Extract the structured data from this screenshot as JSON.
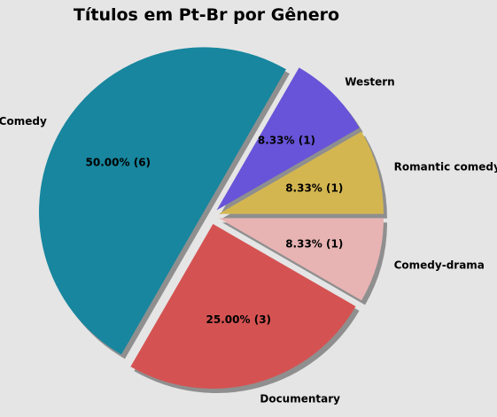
{
  "chart_data": {
    "type": "pie",
    "title": "Títulos em Pt-Br por Gênero",
    "slices": [
      {
        "label": "Romantic comedy",
        "count": 1,
        "percent": "8.33%",
        "pct_label": "8.33%  (1)",
        "color": "#d4b651"
      },
      {
        "label": "Western",
        "count": 1,
        "percent": "8.33%",
        "pct_label": "8.33%  (1)",
        "color": "#6754d8"
      },
      {
        "label": "Comedy",
        "count": 6,
        "percent": "50.00%",
        "pct_label": "50.00%  (6)",
        "color": "#17869e"
      },
      {
        "label": "Documentary",
        "count": 3,
        "percent": "25.00%",
        "pct_label": "25.00%  (3)",
        "color": "#d45352"
      },
      {
        "label": "Comedy-drama",
        "count": 1,
        "percent": "8.33%",
        "pct_label": "8.33%  (1)",
        "color": "#e8b3b3"
      }
    ],
    "start_angle_deg": 0,
    "direction": "counterclockwise",
    "exploded": true,
    "shadow": true,
    "legend": "none"
  }
}
